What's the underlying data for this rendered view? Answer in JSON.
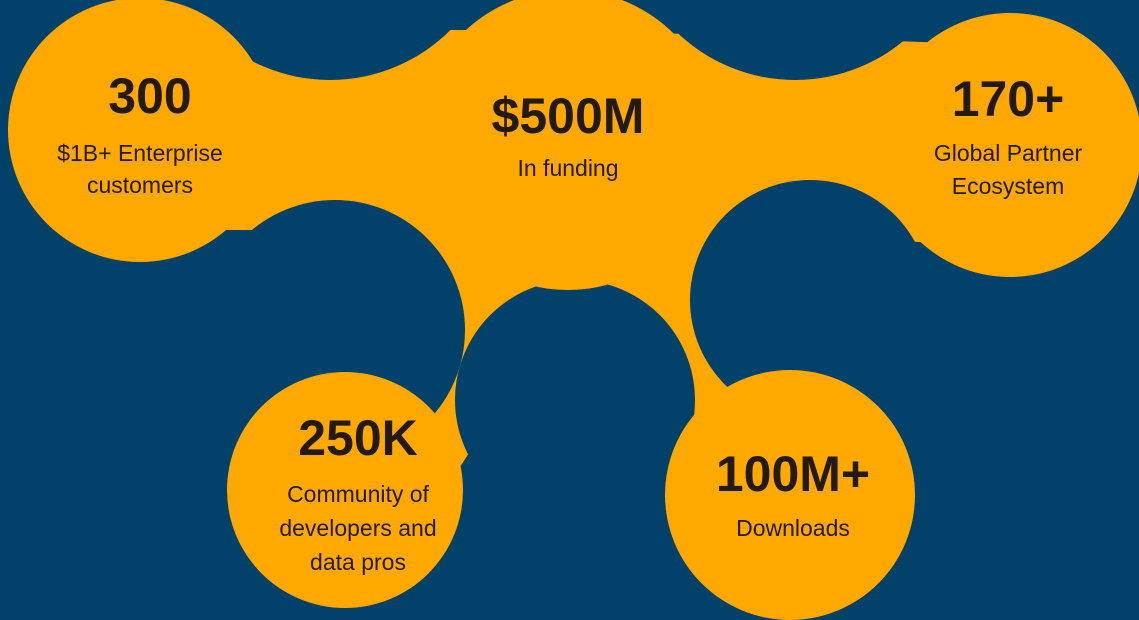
{
  "nodes": [
    {
      "value": "300",
      "label": [
        "$1B+ Enterprise",
        "customers"
      ]
    },
    {
      "value": "$500M",
      "label": [
        "In funding"
      ]
    },
    {
      "value": "170+",
      "label": [
        "Global Partner",
        "Ecosystem"
      ]
    },
    {
      "value": "250K",
      "label": [
        "Community of",
        "developers and",
        "data pros"
      ]
    },
    {
      "value": "100M+",
      "label": [
        "Downloads"
      ]
    }
  ]
}
